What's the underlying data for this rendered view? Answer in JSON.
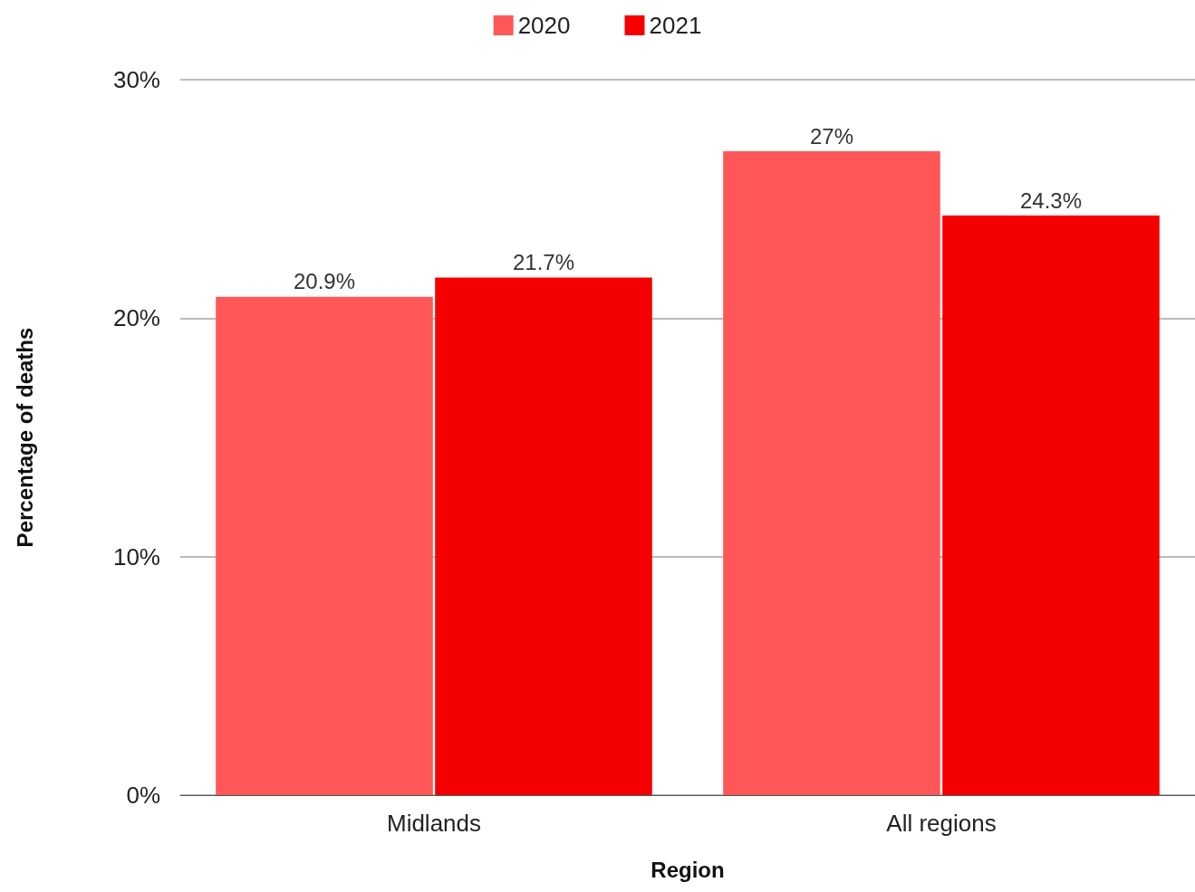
{
  "chart_data": {
    "type": "bar",
    "xlabel": "Region",
    "ylabel": "Percentage of deaths",
    "categories": [
      "Midlands",
      "All regions"
    ],
    "series": [
      {
        "name": "2020",
        "color": "#ff5757",
        "values": [
          20.9,
          27
        ],
        "value_labels": [
          "20.9%",
          "27%"
        ]
      },
      {
        "name": "2021",
        "color": "#f50000",
        "values": [
          21.7,
          24.3
        ],
        "value_labels": [
          "21.7%",
          "24.3%"
        ]
      }
    ],
    "ylim": [
      0,
      30
    ],
    "yticks": [
      {
        "value": 0,
        "label": "0%"
      },
      {
        "value": 10,
        "label": "10%"
      },
      {
        "value": 20,
        "label": "20%"
      },
      {
        "value": 30,
        "label": "30%"
      }
    ],
    "grid": "y",
    "legend": "top"
  }
}
